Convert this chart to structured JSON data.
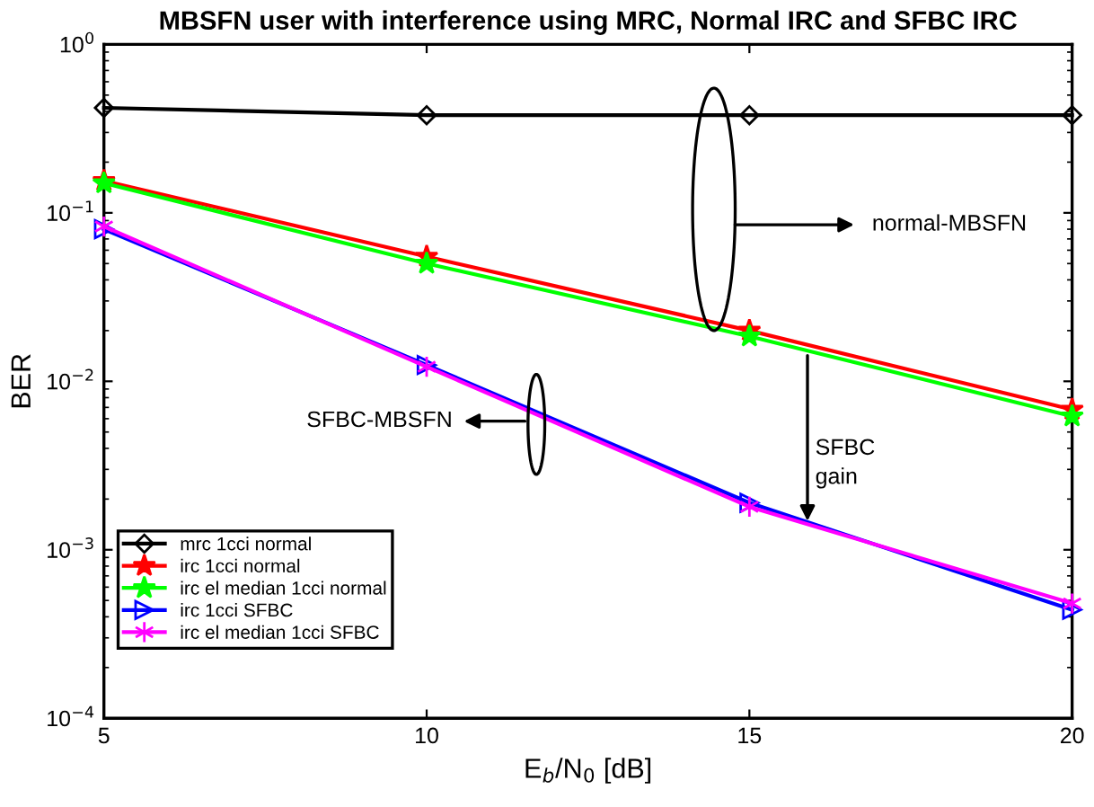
{
  "chart_data": {
    "type": "line",
    "title": "MBSFN user with interference using MRC, Normal IRC and SFBC IRC",
    "xlabel": "E$_{b}$/N$_{0}$ [dB]",
    "ylabel": "BER",
    "x": [
      5,
      10,
      15,
      20
    ],
    "series": [
      {
        "name": "mrc 1cci normal",
        "color": "#000000",
        "marker": "diamond",
        "values": [
          0.42,
          0.38,
          0.38,
          0.38
        ]
      },
      {
        "name": "irc 1cci normal",
        "color": "#ff0000",
        "marker": "star",
        "values": [
          0.155,
          0.055,
          0.02,
          0.0068
        ]
      },
      {
        "name": "irc el median 1cci normal",
        "color": "#00ff00",
        "marker": "star",
        "values": [
          0.15,
          0.05,
          0.0185,
          0.0062
        ]
      },
      {
        "name": "irc 1cci SFBC",
        "color": "#0000ff",
        "marker": "triangle",
        "values": [
          0.08,
          0.0125,
          0.0019,
          0.00044
        ]
      },
      {
        "name": "irc el median 1cci SFBC",
        "color": "#ff00ff",
        "marker": "cross",
        "values": [
          0.083,
          0.0122,
          0.0018,
          0.00048
        ]
      }
    ],
    "log": "y",
    "xlim": [
      5,
      20
    ],
    "ylim": [
      0.0001,
      1
    ],
    "xticks": [
      5,
      10,
      15,
      20
    ],
    "yticks": [
      {
        "value": 0.0001,
        "label": "10$^{−4}$"
      },
      {
        "value": 0.001,
        "label": "10$^{−3}$"
      },
      {
        "value": 0.01,
        "label": "10$^{−2}$"
      },
      {
        "value": 0.1,
        "label": "10$^{−1}$"
      },
      {
        "value": 1,
        "label": "10$^{0}$"
      }
    ],
    "grid": false,
    "legend": "bottom left",
    "line_style": "solid",
    "annotations": [
      "normal-MBSFN",
      "SFBC-MBSFN",
      {
        "text": "SFBC\ngain",
        "x": 15.9,
        "y": 0.00148
      }
    ]
  }
}
